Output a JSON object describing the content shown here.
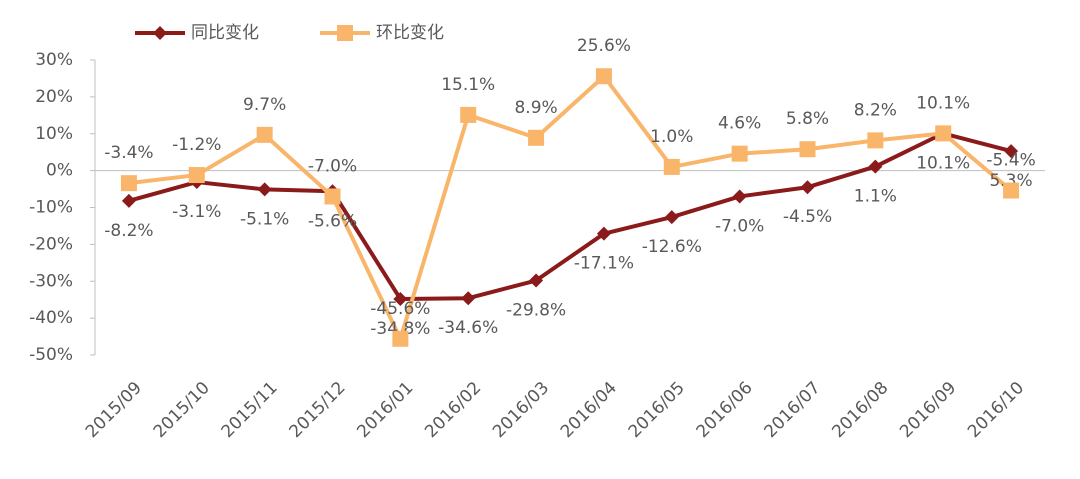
{
  "chart_data": {
    "type": "line",
    "categories": [
      "2015/09",
      "2015/10",
      "2015/11",
      "2015/12",
      "2016/01",
      "2016/02",
      "2016/03",
      "2016/04",
      "2016/05",
      "2016/06",
      "2016/07",
      "2016/08",
      "2016/09",
      "2016/10"
    ],
    "series": [
      {
        "name": "同比变化",
        "color": "#8B1A1A",
        "marker": "diamond",
        "values": [
          -8.2,
          -3.1,
          -5.1,
          -5.6,
          -34.8,
          -34.6,
          -29.8,
          -17.1,
          -12.6,
          -7.0,
          -4.5,
          1.1,
          10.1,
          5.3
        ],
        "value_labels": [
          "-8.2%",
          "-3.1%",
          "-5.1%",
          "-5.6%",
          "-34.8%",
          "-34.6%",
          "-29.8%",
          "-17.1%",
          "-12.6%",
          "-7.0%",
          "-4.5%",
          "1.1%",
          "10.1%",
          "5.3%"
        ]
      },
      {
        "name": "环比变化",
        "color": "#F9B56A",
        "marker": "square",
        "values": [
          -3.4,
          -1.2,
          9.7,
          -7.0,
          -45.6,
          15.1,
          8.9,
          25.6,
          1.0,
          4.6,
          5.8,
          8.2,
          10.1,
          -5.4
        ],
        "value_labels": [
          "-3.4%",
          "-1.2%",
          "9.7%",
          "-7.0%",
          "-45.6%",
          "15.1%",
          "8.9%",
          "25.6%",
          "1.0%",
          "4.6%",
          "5.8%",
          "8.2%",
          "10.1%",
          "-5.4%"
        ]
      }
    ],
    "ylim": [
      -50,
      30
    ],
    "yticks": [
      {
        "value": 30,
        "label": "30%"
      },
      {
        "value": 20,
        "label": "20%"
      },
      {
        "value": 10,
        "label": "10%"
      },
      {
        "value": 0,
        "label": "0%"
      },
      {
        "value": -10,
        "label": "-10%"
      },
      {
        "value": -20,
        "label": "-20%"
      },
      {
        "value": -30,
        "label": "-30%"
      },
      {
        "value": -40,
        "label": "-40%"
      },
      {
        "value": -50,
        "label": "-50%"
      }
    ],
    "grid": false,
    "legend": "top-left"
  }
}
